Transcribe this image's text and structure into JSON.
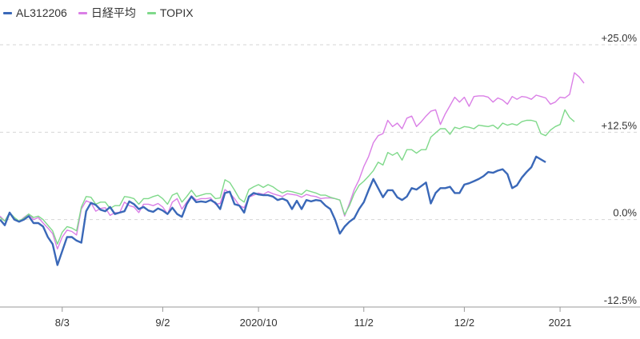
{
  "chart_data": {
    "type": "line",
    "legend_placement": "top-left",
    "grid": true,
    "y_ticks": [
      {
        "value": 25.0,
        "label": "+25.0%"
      },
      {
        "value": 12.5,
        "label": "+12.5%"
      },
      {
        "value": 0.0,
        "label": "0.0%"
      },
      {
        "value": -12.5,
        "label": "-12.5%"
      }
    ],
    "ylim": [
      -12.5,
      25.0
    ],
    "x_ticks": [
      {
        "index": 13,
        "label": "8/3"
      },
      {
        "index": 34,
        "label": "9/2"
      },
      {
        "index": 54,
        "label": "2020/10"
      },
      {
        "index": 76,
        "label": "11/2"
      },
      {
        "index": 97,
        "label": "12/2"
      },
      {
        "index": 117,
        "label": "2021"
      }
    ],
    "series": [
      {
        "name": "日経平均",
        "color": "#da7fe6",
        "values": [
          0.5,
          -0.2,
          1.0,
          0.2,
          -0.3,
          0.3,
          0.8,
          0.0,
          0.3,
          -0.5,
          -1.2,
          -2.0,
          -4.2,
          -2.5,
          -1.5,
          -1.7,
          -2.2,
          1.5,
          2.7,
          2.4,
          1.2,
          1.6,
          1.7,
          0.6,
          1.0,
          1.0,
          2.5,
          2.0,
          1.8,
          1.0,
          2.2,
          2.2,
          2.0,
          2.3,
          1.8,
          0.8,
          2.5,
          3.0,
          1.5,
          2.5,
          3.4,
          2.8,
          3.0,
          3.0,
          3.1,
          2.2,
          2.3,
          4.3,
          3.8,
          3.0,
          2.0,
          1.7,
          3.2,
          3.5,
          3.8,
          3.6,
          4.0,
          3.7,
          3.5,
          3.3,
          3.7,
          3.6,
          3.5,
          3.2,
          3.6,
          3.4,
          3.3,
          3.0,
          3.1,
          3.1,
          3.0,
          2.8,
          0.5,
          2.3,
          4.3,
          5.7,
          7.6,
          9.0,
          11.0,
          12.0,
          12.3,
          14.2,
          13.3,
          13.8,
          13.0,
          14.5,
          14.8,
          13.3,
          14.0,
          14.8,
          15.5,
          15.7,
          13.6,
          15.1,
          16.3,
          17.5,
          16.8,
          17.5,
          16.2,
          17.6,
          17.7,
          17.7,
          17.5,
          16.8,
          17.4,
          17.1,
          16.5,
          17.6,
          17.2,
          17.6,
          17.5,
          17.2,
          17.8,
          17.6,
          17.4,
          16.5,
          16.8,
          17.5,
          17.4,
          17.9,
          21.0,
          20.4,
          19.5
        ]
      },
      {
        "name": "TOPIX",
        "color": "#7fd98a",
        "values": [
          0.3,
          -0.2,
          1.0,
          0.3,
          -0.2,
          0.2,
          0.8,
          0.3,
          0.5,
          0.0,
          -0.8,
          -1.6,
          -3.5,
          -1.8,
          -1.0,
          -1.2,
          -1.6,
          1.8,
          3.3,
          3.2,
          2.2,
          2.5,
          2.5,
          1.6,
          2.0,
          2.0,
          3.3,
          3.2,
          3.0,
          2.2,
          3.0,
          3.0,
          3.3,
          3.5,
          3.0,
          2.2,
          3.5,
          3.8,
          2.5,
          3.3,
          4.2,
          3.3,
          3.5,
          3.7,
          3.7,
          3.0,
          3.1,
          5.7,
          5.3,
          4.2,
          3.0,
          2.5,
          4.3,
          4.7,
          5.0,
          4.6,
          5.0,
          4.7,
          4.2,
          3.8,
          4.1,
          4.0,
          3.8,
          3.6,
          4.2,
          4.0,
          3.8,
          3.5,
          3.5,
          3.2,
          3.0,
          2.8,
          0.7,
          2.0,
          3.7,
          4.9,
          5.5,
          6.2,
          7.0,
          8.2,
          7.8,
          9.6,
          9.2,
          9.6,
          8.5,
          10.0,
          10.0,
          9.5,
          10.0,
          10.0,
          11.8,
          12.4,
          13.0,
          13.0,
          12.2,
          13.2,
          13.0,
          13.3,
          13.2,
          13.0,
          13.5,
          13.4,
          13.3,
          13.5,
          13.0,
          13.8,
          13.5,
          13.7,
          13.5,
          14.0,
          14.2,
          14.2,
          14.0,
          12.3,
          12.0,
          12.8,
          13.3,
          13.6,
          15.7,
          14.6,
          14.0
        ]
      },
      {
        "name": "AL312206",
        "color": "#3a68b8",
        "values": [
          0.0,
          -0.8,
          1.0,
          0.0,
          -0.3,
          0.0,
          0.5,
          -0.5,
          -0.5,
          -1.0,
          -2.5,
          -3.5,
          -6.5,
          -4.5,
          -2.5,
          -2.5,
          -3.0,
          -3.3,
          1.2,
          2.4,
          2.1,
          1.4,
          1.2,
          1.8,
          0.8,
          1.0,
          1.2,
          2.6,
          2.2,
          1.5,
          1.8,
          1.3,
          1.1,
          1.6,
          1.3,
          0.8,
          1.7,
          0.8,
          0.4,
          2.2,
          3.3,
          2.5,
          2.6,
          2.5,
          2.8,
          2.4,
          1.5,
          3.8,
          4.0,
          2.2,
          2.0,
          1.0,
          3.3,
          3.8,
          3.6,
          3.5,
          3.5,
          3.3,
          2.8,
          3.0,
          2.7,
          1.5,
          2.7,
          1.5,
          2.8,
          2.6,
          2.8,
          2.7,
          2.0,
          1.5,
          0.0,
          -2.0,
          -1.0,
          -0.3,
          0.2,
          1.5,
          2.5,
          4.2,
          5.8,
          4.5,
          3.2,
          4.2,
          4.2,
          3.2,
          2.8,
          3.3,
          4.5,
          4.3,
          4.8,
          5.3,
          2.3,
          3.8,
          4.5,
          4.5,
          4.7,
          3.8,
          3.8,
          5.0,
          5.2,
          5.5,
          5.8,
          6.2,
          6.8,
          6.7,
          7.0,
          7.2,
          6.5,
          4.5,
          4.9,
          6.0,
          6.8,
          7.5,
          9.0,
          8.6,
          8.2
        ]
      }
    ]
  }
}
